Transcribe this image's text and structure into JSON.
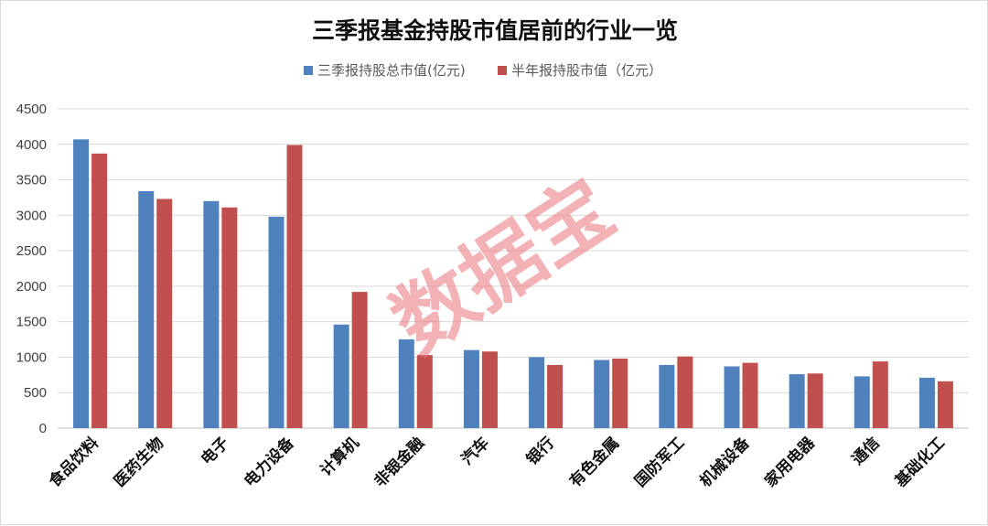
{
  "chart_data": {
    "type": "bar",
    "title": "三季报基金持股市值居前的行业一览",
    "categories": [
      "食品饮料",
      "医药生物",
      "电子",
      "电力设备",
      "计算机",
      "非银金融",
      "汽车",
      "银行",
      "有色金属",
      "国防军工",
      "机械设备",
      "家用电器",
      "通信",
      "基础化工"
    ],
    "series": [
      {
        "name": "三季报持股总市值(亿元)",
        "color": "#4f81bd",
        "values": [
          4070,
          3340,
          3200,
          2980,
          1460,
          1250,
          1100,
          1000,
          960,
          890,
          870,
          760,
          730,
          710
        ]
      },
      {
        "name": "半年报持股市值（亿元）",
        "color": "#c0504d",
        "values": [
          3870,
          3230,
          3110,
          3990,
          1920,
          1030,
          1080,
          890,
          980,
          1010,
          920,
          770,
          940,
          660
        ]
      }
    ],
    "yticks": [
      0,
      500,
      1000,
      1500,
      2000,
      2500,
      3000,
      3500,
      4000,
      4500
    ],
    "ylim": [
      0,
      4500
    ],
    "grid": true,
    "legend_position": "top-center",
    "xlabel": "",
    "ylabel": ""
  },
  "watermark": "数据宝"
}
